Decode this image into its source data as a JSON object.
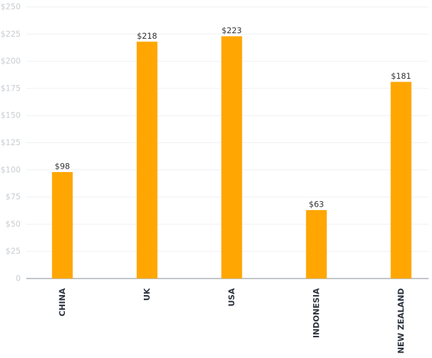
{
  "chart_data": {
    "type": "bar",
    "categories": [
      "CHINA",
      "UK",
      "USA",
      "INDONESIA",
      "NEW ZEALAND"
    ],
    "values": [
      98,
      218,
      223,
      63,
      181
    ],
    "value_labels": [
      "$98",
      "$218",
      "$223",
      "$63",
      "$181"
    ],
    "color": "#ffa602",
    "ylim": [
      0,
      250
    ],
    "yticks": [
      0,
      {
        "value": 25,
        "label": "$25"
      },
      {
        "value": 50,
        "label": "$50"
      },
      {
        "value": 75,
        "label": "$75"
      },
      {
        "value": 100,
        "label": "$100"
      },
      {
        "value": 125,
        "label": "$125"
      },
      {
        "value": 150,
        "label": "$150"
      },
      {
        "value": 175,
        "label": "$175"
      },
      {
        "value": 200,
        "label": "$200"
      },
      {
        "value": 225,
        "label": "$225"
      },
      {
        "value": 250,
        "label": "$250"
      }
    ],
    "grid": true
  }
}
